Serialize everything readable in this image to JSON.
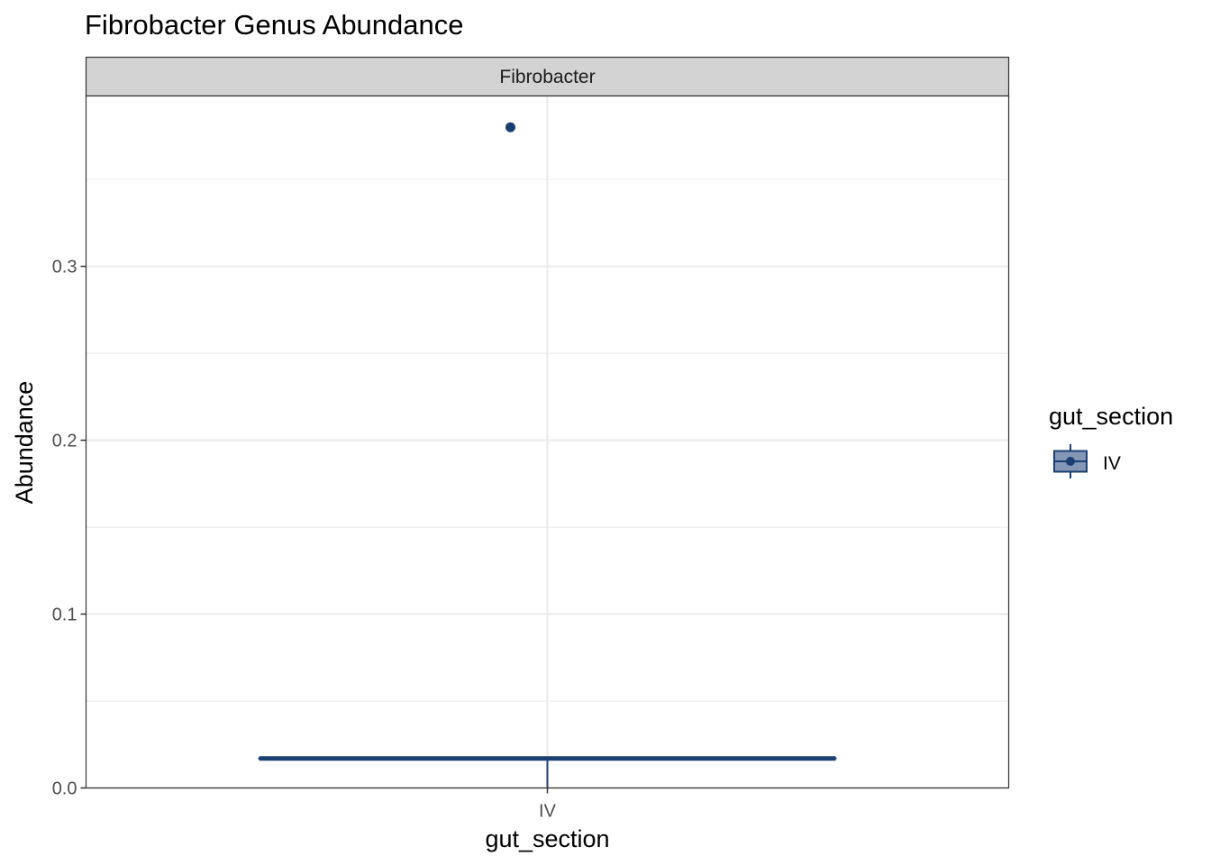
{
  "chart_data": {
    "type": "boxplot",
    "title": "Fibrobacter Genus Abundance",
    "facet_label": "Fibrobacter",
    "xlabel": "gut_section",
    "ylabel": "Abundance",
    "categories": [
      "IV"
    ],
    "boxes": [
      {
        "category": "IV",
        "min": 0.0,
        "q1": 0.017,
        "median": 0.017,
        "q3": 0.017,
        "max": 0.017,
        "outliers": [
          0.38
        ]
      }
    ],
    "ylim": [
      0.0,
      0.398
    ],
    "yticks": [
      {
        "value": 0.0,
        "label": "0.0"
      },
      {
        "value": 0.1,
        "label": "0.1"
      },
      {
        "value": 0.2,
        "label": "0.2"
      },
      {
        "value": 0.3,
        "label": "0.3"
      }
    ],
    "yminor": [
      0.05,
      0.15,
      0.25,
      0.35
    ],
    "grid": true,
    "legend": {
      "position": "right",
      "title": "gut_section",
      "entries": [
        {
          "label": "IV",
          "color": "#1b3f73"
        }
      ]
    },
    "colors": {
      "series": "#1b3f73",
      "legend_fill": "#8497b6",
      "strip_background": "#d3d3d3",
      "grid": "#ebebeb"
    }
  }
}
